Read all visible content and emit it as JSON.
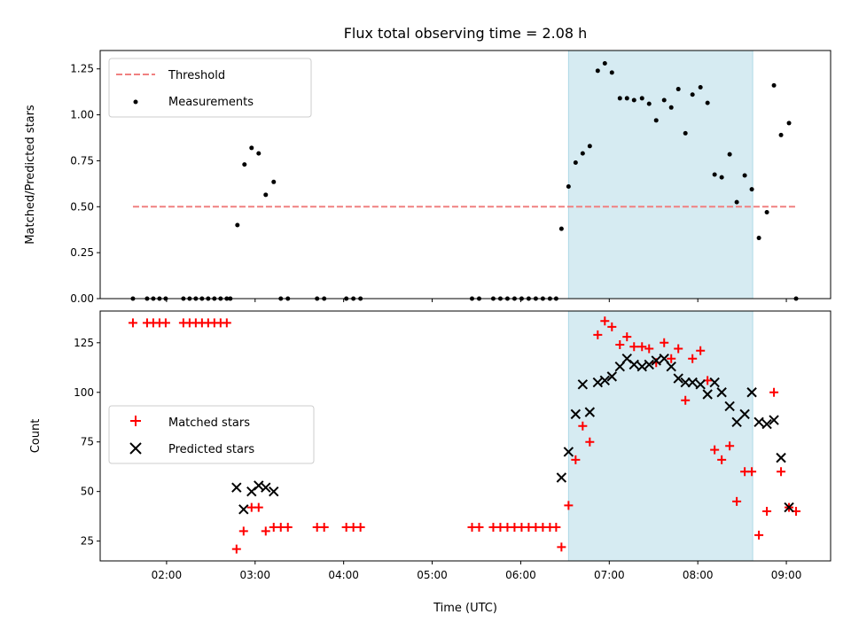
{
  "chart_data": {
    "title": "Flux total observing time = 2.08 h",
    "xlabel": "Time (UTC)",
    "x_unit": "hours UTC",
    "xlim": [
      1.25,
      9.5
    ],
    "x_ticks": [
      2,
      3,
      4,
      5,
      6,
      7,
      8,
      9
    ],
    "x_tick_labels": [
      "02:00",
      "03:00",
      "04:00",
      "05:00",
      "06:00",
      "07:00",
      "08:00",
      "09:00"
    ],
    "shaded_span": {
      "x_start": 6.54,
      "x_end": 8.62,
      "color": "#add8e6"
    },
    "panels": [
      {
        "type": "scatter",
        "ylabel": "Matched/Predicted stars",
        "ylim": [
          0,
          1.35
        ],
        "y_ticks": [
          0,
          0.25,
          0.5,
          0.75,
          1.0,
          1.25
        ],
        "y_tick_labels": [
          "0.00",
          "0.25",
          "0.50",
          "0.75",
          "1.00",
          "1.25"
        ],
        "legend_position": "upper-left",
        "threshold": {
          "name": "Threshold",
          "y": 0.5,
          "x_range": [
            1.62,
            9.12
          ],
          "color": "#f08080"
        },
        "series": [
          {
            "name": "Measurements",
            "marker": "dot",
            "color": "#000000",
            "x": [
              1.62,
              1.78,
              1.85,
              1.92,
              1.99,
              2.19,
              2.26,
              2.33,
              2.4,
              2.47,
              2.54,
              2.61,
              2.68,
              2.72,
              2.8,
              2.88,
              2.96,
              3.04,
              3.12,
              3.21,
              3.29,
              3.37,
              3.7,
              3.78,
              4.03,
              4.11,
              4.19,
              5.45,
              5.53,
              5.69,
              5.77,
              5.85,
              5.93,
              6.01,
              6.09,
              6.17,
              6.25,
              6.33,
              6.4,
              6.46,
              6.54,
              6.62,
              6.7,
              6.78,
              6.87,
              6.95,
              7.03,
              7.12,
              7.2,
              7.28,
              7.37,
              7.45,
              7.53,
              7.62,
              7.7,
              7.78,
              7.86,
              7.94,
              8.03,
              8.11,
              8.19,
              8.27,
              8.36,
              8.44,
              8.53,
              8.61,
              8.69,
              8.78,
              8.86,
              8.94,
              9.03,
              9.11
            ],
            "y": [
              0,
              0,
              0,
              0,
              0,
              0,
              0,
              0,
              0,
              0,
              0,
              0,
              0,
              0,
              0.4,
              0.73,
              0.82,
              0.79,
              0.565,
              0.635,
              0,
              0,
              0,
              0,
              0,
              0,
              0,
              0,
              0,
              0,
              0,
              0,
              0,
              0,
              0,
              0,
              0,
              0,
              0,
              0.38,
              0.61,
              0.74,
              0.79,
              0.83,
              1.24,
              1.28,
              1.23,
              1.09,
              1.09,
              1.08,
              1.09,
              1.06,
              0.97,
              1.08,
              1.04,
              1.14,
              0.9,
              1.11,
              1.15,
              1.065,
              0.675,
              0.66,
              0.785,
              0.525,
              0.67,
              0.595,
              0.33,
              0.47,
              1.16,
              0.89,
              0.955,
              0
            ]
          }
        ]
      },
      {
        "type": "scatter",
        "ylabel": "Count",
        "ylim": [
          15,
          141
        ],
        "y_ticks": [
          25,
          50,
          75,
          100,
          125
        ],
        "y_tick_labels": [
          "25",
          "50",
          "75",
          "100",
          "125"
        ],
        "legend_position": "center-left",
        "series": [
          {
            "name": "Matched stars",
            "marker": "plus",
            "color": "#ff0000",
            "x": [
              1.62,
              1.78,
              1.85,
              1.92,
              1.99,
              2.19,
              2.26,
              2.33,
              2.4,
              2.47,
              2.54,
              2.61,
              2.68,
              2.79,
              2.87,
              2.96,
              3.04,
              3.12,
              3.21,
              3.29,
              3.37,
              3.7,
              3.78,
              4.03,
              4.11,
              4.19,
              5.45,
              5.53,
              5.69,
              5.77,
              5.85,
              5.93,
              6.01,
              6.09,
              6.17,
              6.25,
              6.33,
              6.4,
              6.46,
              6.54,
              6.62,
              6.7,
              6.78,
              6.87,
              6.95,
              7.03,
              7.12,
              7.2,
              7.28,
              7.37,
              7.45,
              7.53,
              7.62,
              7.7,
              7.78,
              7.86,
              7.94,
              8.03,
              8.11,
              8.19,
              8.27,
              8.36,
              8.44,
              8.53,
              8.61,
              8.69,
              8.78,
              8.86,
              8.94,
              9.03,
              9.11
            ],
            "y": [
              135,
              135,
              135,
              135,
              135,
              135,
              135,
              135,
              135,
              135,
              135,
              135,
              135,
              21,
              30,
              42,
              42,
              30,
              32,
              32,
              32,
              32,
              32,
              32,
              32,
              32,
              32,
              32,
              32,
              32,
              32,
              32,
              32,
              32,
              32,
              32,
              32,
              32,
              22,
              43,
              66,
              83,
              75,
              129,
              136,
              133,
              124,
              128,
              123,
              123,
              122,
              115,
              125,
              117,
              122,
              96,
              117,
              121,
              106,
              71,
              66,
              73,
              45,
              60,
              60,
              28,
              40,
              100,
              60,
              42,
              40
            ]
          },
          {
            "name": "Predicted stars",
            "marker": "x",
            "color": "#000000",
            "x": [
              2.79,
              2.87,
              2.96,
              3.04,
              3.12,
              3.21,
              6.46,
              6.54,
              6.62,
              6.7,
              6.78,
              6.87,
              6.95,
              7.03,
              7.12,
              7.2,
              7.28,
              7.37,
              7.45,
              7.53,
              7.62,
              7.7,
              7.78,
              7.86,
              7.94,
              8.03,
              8.11,
              8.19,
              8.27,
              8.36,
              8.44,
              8.53,
              8.61,
              8.69,
              8.78,
              8.86,
              8.94,
              9.03
            ],
            "y": [
              52,
              41,
              50,
              53,
              52,
              50,
              57,
              70,
              89,
              104,
              90,
              105,
              106,
              108,
              113,
              117,
              114,
              113,
              114,
              116,
              117,
              113,
              107,
              105,
              105,
              104,
              99,
              105,
              100,
              93,
              85,
              89,
              100,
              85,
              84,
              86,
              67,
              42
            ]
          }
        ]
      }
    ]
  }
}
